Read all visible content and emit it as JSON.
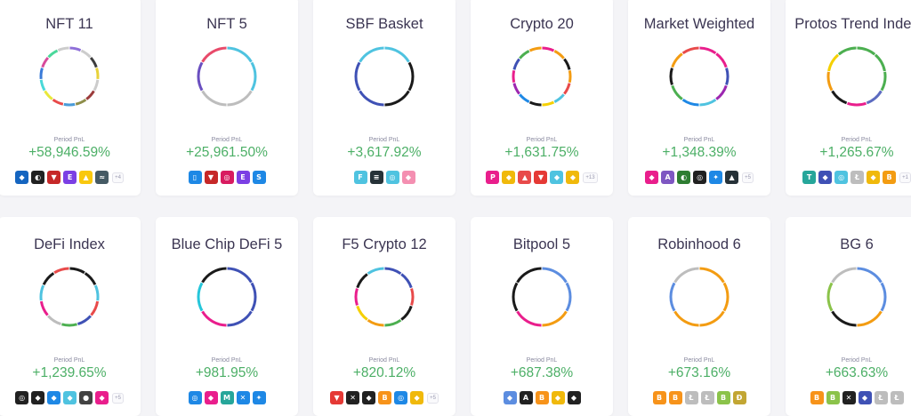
{
  "pnl_label": "Period PnL",
  "baskets": [
    {
      "name": "NFT 11",
      "pnl": "+58,946.59%",
      "more": "+4",
      "ring": [
        "#8e6fd8",
        "#cccccc",
        "#3c3c3c",
        "#e8d23a",
        "#cccccc",
        "#9b3b3b",
        "#8e8e4a",
        "#4a9bd8",
        "#e84a4a",
        "#e8e83a",
        "#4ad8d8",
        "#3a7bd8",
        "#d84a9b",
        "#4ad89b",
        "#cccccc"
      ],
      "coins": [
        {
          "c": "#1565c0",
          "g": "◆"
        },
        {
          "c": "#212121",
          "g": "◐"
        },
        {
          "c": "#c62828",
          "g": "▼"
        },
        {
          "c": "#7b3fe4",
          "g": "E"
        },
        {
          "c": "#f9c80e",
          "g": "▲"
        },
        {
          "c": "#455a64",
          "g": "≈"
        }
      ]
    },
    {
      "name": "NFT 5",
      "pnl": "+25,961.50%",
      "more": "",
      "ring": [
        "#4fc3e0",
        "#4fc3e0",
        "#bdbdbd",
        "#bdbdbd",
        "#6a4fc0",
        "#e84a6a"
      ],
      "coins": [
        {
          "c": "#1e88e5",
          "g": "▯"
        },
        {
          "c": "#c62828",
          "g": "▼"
        },
        {
          "c": "#d81b60",
          "g": "◎"
        },
        {
          "c": "#7b3fe4",
          "g": "E"
        },
        {
          "c": "#1e88e5",
          "g": "S"
        }
      ]
    },
    {
      "name": "SBF Basket",
      "pnl": "+3,617.92%",
      "more": "",
      "ring": [
        "#4fc3e0",
        "#1a1a1a",
        "#1a1a1a",
        "#3f51b5",
        "#3f51b5",
        "#4fc3e0"
      ],
      "coins": [
        {
          "c": "#4fc3e0",
          "g": "F"
        },
        {
          "c": "#263238",
          "g": "≡"
        },
        {
          "c": "#4fc3e0",
          "g": "◎"
        },
        {
          "c": "#f48fb1",
          "g": "◆"
        }
      ]
    },
    {
      "name": "Crypto 20",
      "pnl": "+1,631.75%",
      "more": "+13",
      "ring": [
        "#e91e8c",
        "#f39c12",
        "#1a1a1a",
        "#f39c12",
        "#e84a4a",
        "#4fc3e0",
        "#f5d000",
        "#1a1a1a",
        "#1e88e5",
        "#9c27b0",
        "#e91e8c",
        "#3f51b5",
        "#4caf50",
        "#f39c12"
      ],
      "coins": [
        {
          "c": "#e91e8c",
          "g": "P"
        },
        {
          "c": "#f0b90b",
          "g": "◆"
        },
        {
          "c": "#e84a4a",
          "g": "▲"
        },
        {
          "c": "#e53935",
          "g": "▼"
        },
        {
          "c": "#4fc3e0",
          "g": "◆"
        },
        {
          "c": "#f0b90b",
          "g": "◆"
        }
      ]
    },
    {
      "name": "Market Weighted",
      "pnl": "+1,348.39%",
      "more": "+5",
      "ring": [
        "#e91e8c",
        "#e91e8c",
        "#3f51b5",
        "#9c27b0",
        "#4fc3e0",
        "#1e88e5",
        "#4caf50",
        "#1a1a1a",
        "#f39c12",
        "#e84a4a"
      ],
      "coins": [
        {
          "c": "#e91e8c",
          "g": "◆"
        },
        {
          "c": "#7e57c2",
          "g": "A"
        },
        {
          "c": "#2e7d32",
          "g": "◐"
        },
        {
          "c": "#212121",
          "g": "◎"
        },
        {
          "c": "#1e88e5",
          "g": "✦"
        },
        {
          "c": "#263238",
          "g": "▲"
        }
      ]
    },
    {
      "name": "Protos Trend Index",
      "pnl": "+1,265.67%",
      "more": "+1",
      "ring": [
        "#4caf50",
        "#4caf50",
        "#4caf50",
        "#5c6bc0",
        "#e91e8c",
        "#1a1a1a",
        "#f39c12",
        "#f5d000",
        "#4caf50"
      ],
      "coins": [
        {
          "c": "#26a69a",
          "g": "T"
        },
        {
          "c": "#3f51b5",
          "g": "◆"
        },
        {
          "c": "#4fc3e0",
          "g": "◎"
        },
        {
          "c": "#bdbdbd",
          "g": "Ł"
        },
        {
          "c": "#f0b90b",
          "g": "◆"
        },
        {
          "c": "#f39c12",
          "g": "B"
        }
      ]
    },
    {
      "name": "DeFi Index",
      "pnl": "+1,239.65%",
      "more": "+5",
      "ring": [
        "#1a1a1a",
        "#1a1a1a",
        "#4fc3e0",
        "#e84a4a",
        "#3f51b5",
        "#4caf50",
        "#bdbdbd",
        "#e91e8c",
        "#4fc3e0",
        "#1a1a1a",
        "#e84a4a"
      ],
      "coins": [
        {
          "c": "#212121",
          "g": "◎"
        },
        {
          "c": "#212121",
          "g": "◆"
        },
        {
          "c": "#1e88e5",
          "g": "◆"
        },
        {
          "c": "#4fc3e0",
          "g": "◆"
        },
        {
          "c": "#424242",
          "g": "●"
        },
        {
          "c": "#e91e8c",
          "g": "◆"
        }
      ]
    },
    {
      "name": "Blue Chip DeFi 5",
      "pnl": "+981.95%",
      "more": "",
      "ring": [
        "#3f51b5",
        "#3f51b5",
        "#3f51b5",
        "#e91e8c",
        "#26c6da",
        "#1a1a1a"
      ],
      "coins": [
        {
          "c": "#1e88e5",
          "g": "◎"
        },
        {
          "c": "#e91e8c",
          "g": "◆"
        },
        {
          "c": "#26a69a",
          "g": "M"
        },
        {
          "c": "#1e88e5",
          "g": "✕"
        },
        {
          "c": "#1e88e5",
          "g": "✦"
        }
      ]
    },
    {
      "name": "F5 Crypto 12",
      "pnl": "+820.12%",
      "more": "+5",
      "ring": [
        "#3f51b5",
        "#3f51b5",
        "#e84a4a",
        "#1a1a1a",
        "#4caf50",
        "#f39c12",
        "#f5d000",
        "#e91e8c",
        "#1a1a1a",
        "#4fc3e0"
      ],
      "coins": [
        {
          "c": "#e53935",
          "g": "▼"
        },
        {
          "c": "#212121",
          "g": "✕"
        },
        {
          "c": "#212121",
          "g": "◆"
        },
        {
          "c": "#f7931a",
          "g": "B"
        },
        {
          "c": "#1e88e5",
          "g": "◎"
        },
        {
          "c": "#f0b90b",
          "g": "◆"
        }
      ]
    },
    {
      "name": "Bitpool 5",
      "pnl": "+687.38%",
      "more": "",
      "ring": [
        "#5c8de0",
        "#5c8de0",
        "#f39c12",
        "#e91e8c",
        "#1a1a1a",
        "#1a1a1a"
      ],
      "coins": [
        {
          "c": "#5c8de0",
          "g": "◆"
        },
        {
          "c": "#212121",
          "g": "A"
        },
        {
          "c": "#f7931a",
          "g": "B"
        },
        {
          "c": "#f0b90b",
          "g": "◆"
        },
        {
          "c": "#212121",
          "g": "◆"
        }
      ]
    },
    {
      "name": "Robinhood 6",
      "pnl": "+673.16%",
      "more": "",
      "ring": [
        "#f39c12",
        "#f39c12",
        "#f39c12",
        "#f39c12",
        "#5c8de0",
        "#bdbdbd"
      ],
      "coins": [
        {
          "c": "#f7931a",
          "g": "B"
        },
        {
          "c": "#f7931a",
          "g": "B"
        },
        {
          "c": "#bdbdbd",
          "g": "Ł"
        },
        {
          "c": "#bdbdbd",
          "g": "Ł"
        },
        {
          "c": "#8bc34a",
          "g": "B"
        },
        {
          "c": "#c2a633",
          "g": "Ð"
        }
      ]
    },
    {
      "name": "BG 6",
      "pnl": "+663.63%",
      "more": "",
      "ring": [
        "#5c8de0",
        "#5c8de0",
        "#f39c12",
        "#1a1a1a",
        "#8bc34a",
        "#bdbdbd"
      ],
      "coins": [
        {
          "c": "#f7931a",
          "g": "B"
        },
        {
          "c": "#8bc34a",
          "g": "B"
        },
        {
          "c": "#212121",
          "g": "✕"
        },
        {
          "c": "#3f51b5",
          "g": "◆"
        },
        {
          "c": "#bdbdbd",
          "g": "Ł"
        },
        {
          "c": "#bdbdbd",
          "g": "Ł"
        }
      ]
    }
  ]
}
